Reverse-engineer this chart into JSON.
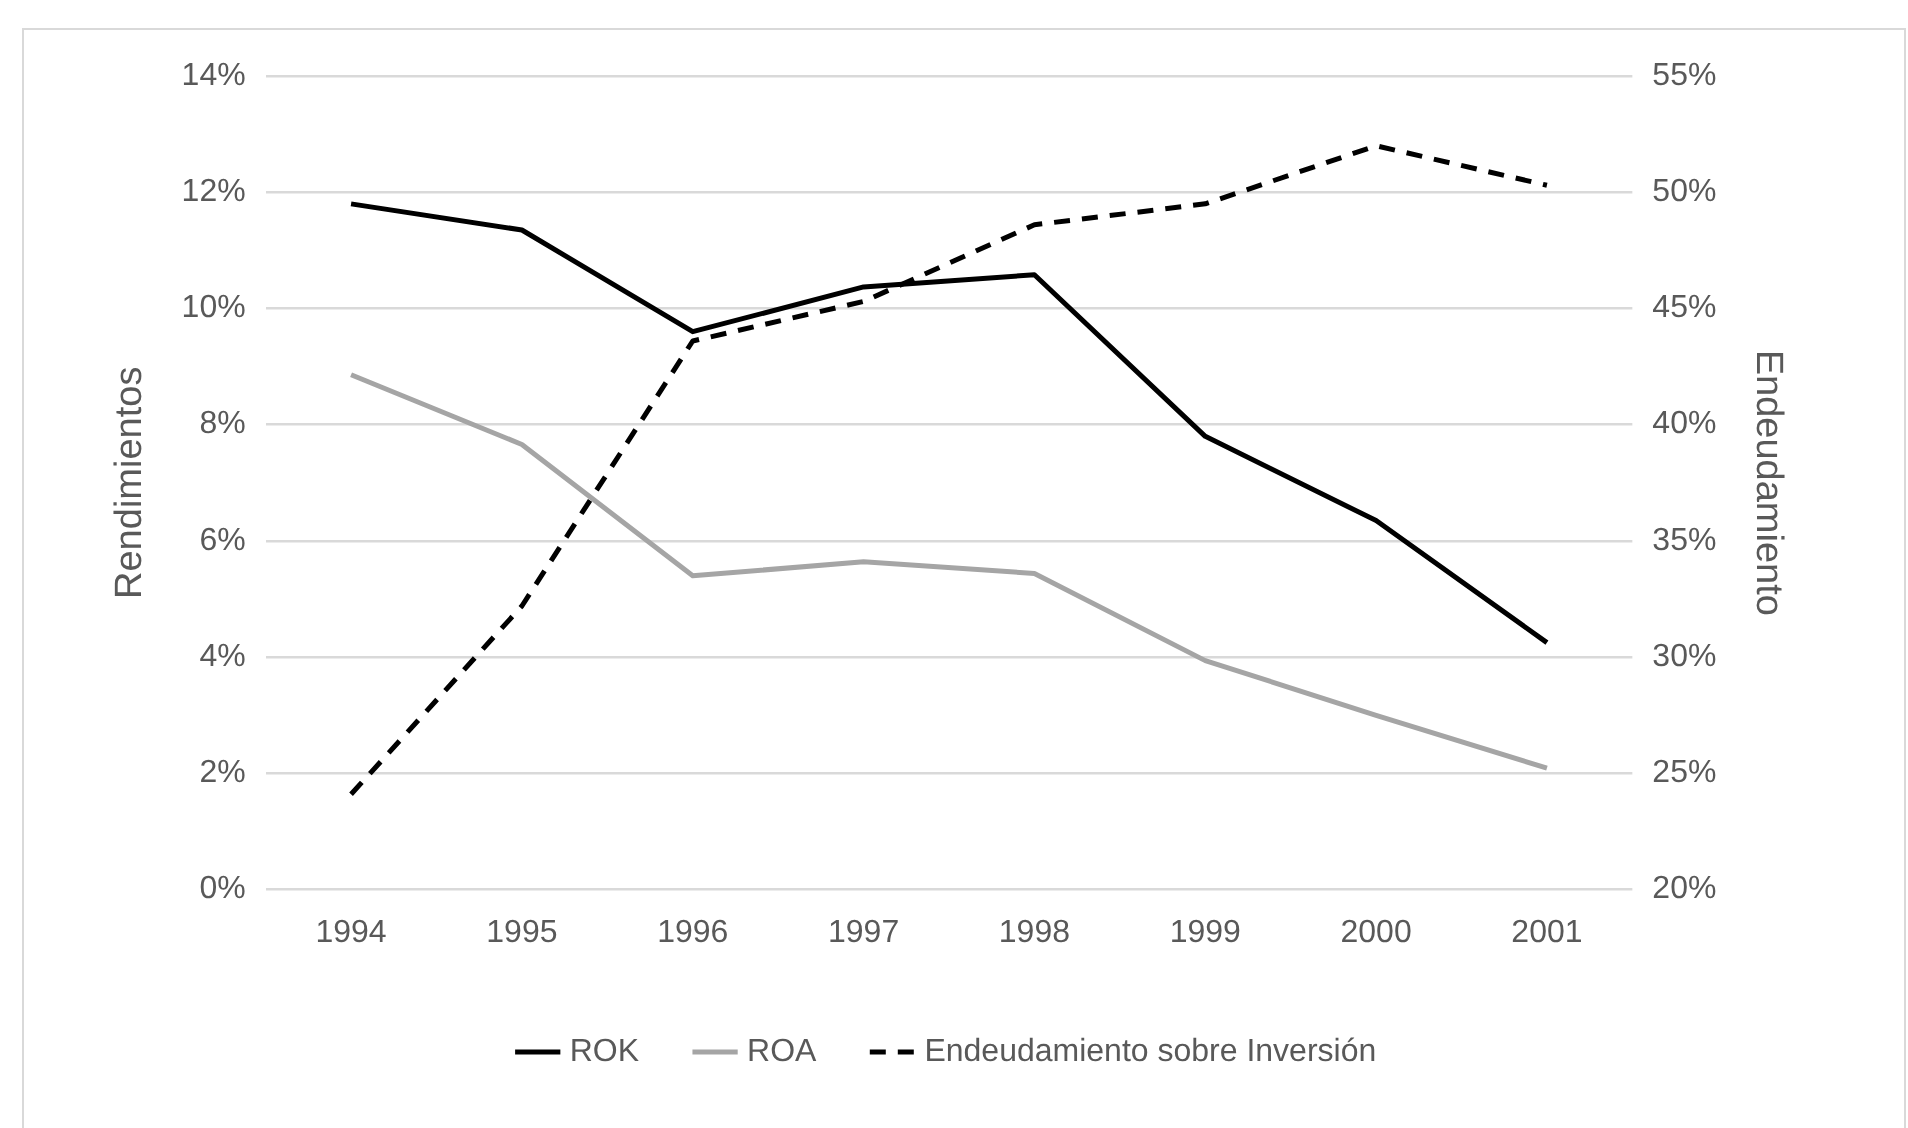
{
  "chart_data": {
    "type": "line",
    "ylabel": "Rendimientos",
    "y2label": "Endeudamiento",
    "categories": [
      "1994",
      "1995",
      "1996",
      "1997",
      "1998",
      "1999",
      "2000",
      "2001"
    ],
    "series": [
      {
        "name": "ROK",
        "color": "#000000",
        "values": [
          11.8,
          11.35,
          9.6,
          10.37,
          10.58,
          7.8,
          6.35,
          4.25
        ]
      },
      {
        "name": "ROA",
        "color": "#a5a5a5",
        "values": [
          8.86,
          7.66,
          5.4,
          5.64,
          5.44,
          3.94,
          3.0,
          2.09
        ]
      },
      {
        "name": "Endeudamiento sobre Inversión",
        "color": "#000000",
        "axis": "y2",
        "line_style": "dashed",
        "values": [
          24.1,
          32.2,
          43.6,
          45.3,
          48.6,
          49.5,
          52.0,
          50.3
        ]
      }
    ],
    "ylim": [
      0,
      14
    ],
    "yticks": [
      {
        "value": 0,
        "label": "0%"
      },
      {
        "value": 2,
        "label": "2%"
      },
      {
        "value": 4,
        "label": "4%"
      },
      {
        "value": 6,
        "label": "6%"
      },
      {
        "value": 8,
        "label": "8%"
      },
      {
        "value": 10,
        "label": "10%"
      },
      {
        "value": 12,
        "label": "12%"
      },
      {
        "value": 14,
        "label": "14%"
      }
    ],
    "y2lim": [
      20,
      55
    ],
    "y2ticks": [
      {
        "value": 20,
        "label": "20%"
      },
      {
        "value": 25,
        "label": "25%"
      },
      {
        "value": 30,
        "label": "30%"
      },
      {
        "value": 35,
        "label": "35%"
      },
      {
        "value": 40,
        "label": "40%"
      },
      {
        "value": 45,
        "label": "45%"
      },
      {
        "value": 50,
        "label": "50%"
      },
      {
        "value": 55,
        "label": "55%"
      }
    ],
    "grid": "y",
    "legend": "bottom",
    "marker": "none",
    "line_style": "solid"
  }
}
